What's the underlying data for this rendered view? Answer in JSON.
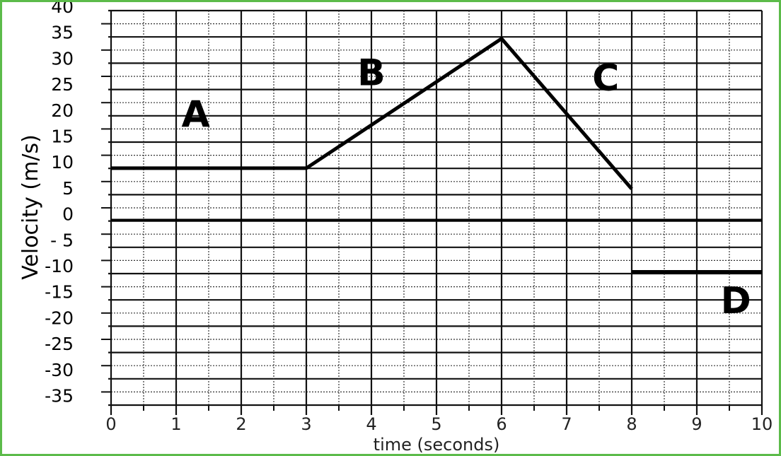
{
  "chart_data": {
    "type": "line",
    "xlabel": "time (seconds)",
    "ylabel": "Velocity (m/s)",
    "xlim": [
      0,
      10
    ],
    "ylim": [
      -35,
      40
    ],
    "x_ticks": [
      "0",
      "1",
      "2",
      "3",
      "4",
      "5",
      "6",
      "7",
      "8",
      "9",
      "10"
    ],
    "y_ticks": [
      "40",
      "35",
      "30",
      "25",
      "20",
      "15",
      "10",
      "5",
      "0",
      "- 5",
      "-10",
      "-15",
      "-20",
      "-25",
      "-30",
      "-35"
    ],
    "grid": true,
    "series": [
      {
        "points": [
          [
            0,
            10
          ],
          [
            3,
            10
          ],
          [
            6,
            35
          ],
          [
            8,
            6
          ]
        ]
      },
      {
        "points": [
          [
            8,
            -10
          ],
          [
            10,
            -10
          ]
        ]
      },
      {
        "points": [
          [
            0,
            0
          ],
          [
            10,
            0
          ]
        ]
      }
    ],
    "annotations": [
      {
        "text": "A",
        "x": 1.3,
        "y": 18
      },
      {
        "text": "B",
        "x": 4.0,
        "y": 26
      },
      {
        "text": "C",
        "x": 7.6,
        "y": 25
      },
      {
        "text": "D",
        "x": 9.6,
        "y": -18
      }
    ],
    "colors": {
      "border": "#5cbb4a",
      "line": "#000000"
    }
  }
}
